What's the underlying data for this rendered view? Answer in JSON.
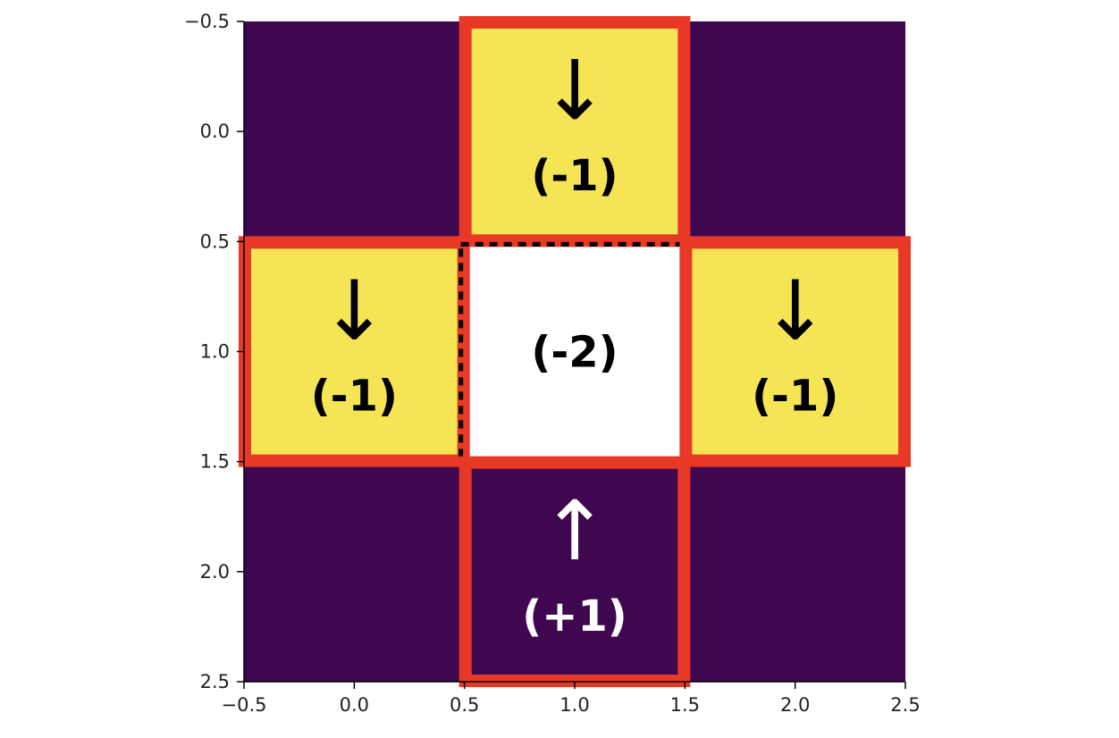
{
  "chart_data": {
    "type": "heatmap",
    "title": "",
    "xlabel": "",
    "ylabel": "",
    "xlim": [
      -0.5,
      2.5
    ],
    "ylim": [
      2.5,
      -0.5
    ],
    "y_axis_inverted": true,
    "grid": false,
    "legend": "none",
    "x_ticks": [
      "−0.5",
      "0.0",
      "0.5",
      "1.0",
      "1.5",
      "2.0",
      "2.5"
    ],
    "y_ticks": [
      "−0.5",
      "0.0",
      "0.5",
      "1.0",
      "1.5",
      "2.0",
      "2.5"
    ],
    "matrix": [
      [
        0,
        1,
        0
      ],
      [
        1,
        0,
        1
      ],
      [
        0,
        0,
        0
      ]
    ],
    "colormap": {
      "0": "#3f074f",
      "1": "#f5e555"
    },
    "cells": [
      {
        "row": 0,
        "col": 1,
        "arrow": "↓",
        "label": "(-1)",
        "text_color": "#000000",
        "highlight": "red"
      },
      {
        "row": 1,
        "col": 0,
        "arrow": "↓",
        "label": "(-1)",
        "text_color": "#000000",
        "highlight": "red"
      },
      {
        "row": 1,
        "col": 1,
        "arrow": "",
        "label": "(-2)",
        "text_color": "#000000",
        "fill": "#ffffff",
        "highlight": "dashed-black"
      },
      {
        "row": 1,
        "col": 2,
        "arrow": "↓",
        "label": "(-1)",
        "text_color": "#000000",
        "highlight": "red"
      },
      {
        "row": 2,
        "col": 1,
        "arrow": "↑",
        "label": "(+1)",
        "text_color": "#ffffff",
        "highlight": "red"
      }
    ],
    "highlight_color": "#e83826"
  }
}
